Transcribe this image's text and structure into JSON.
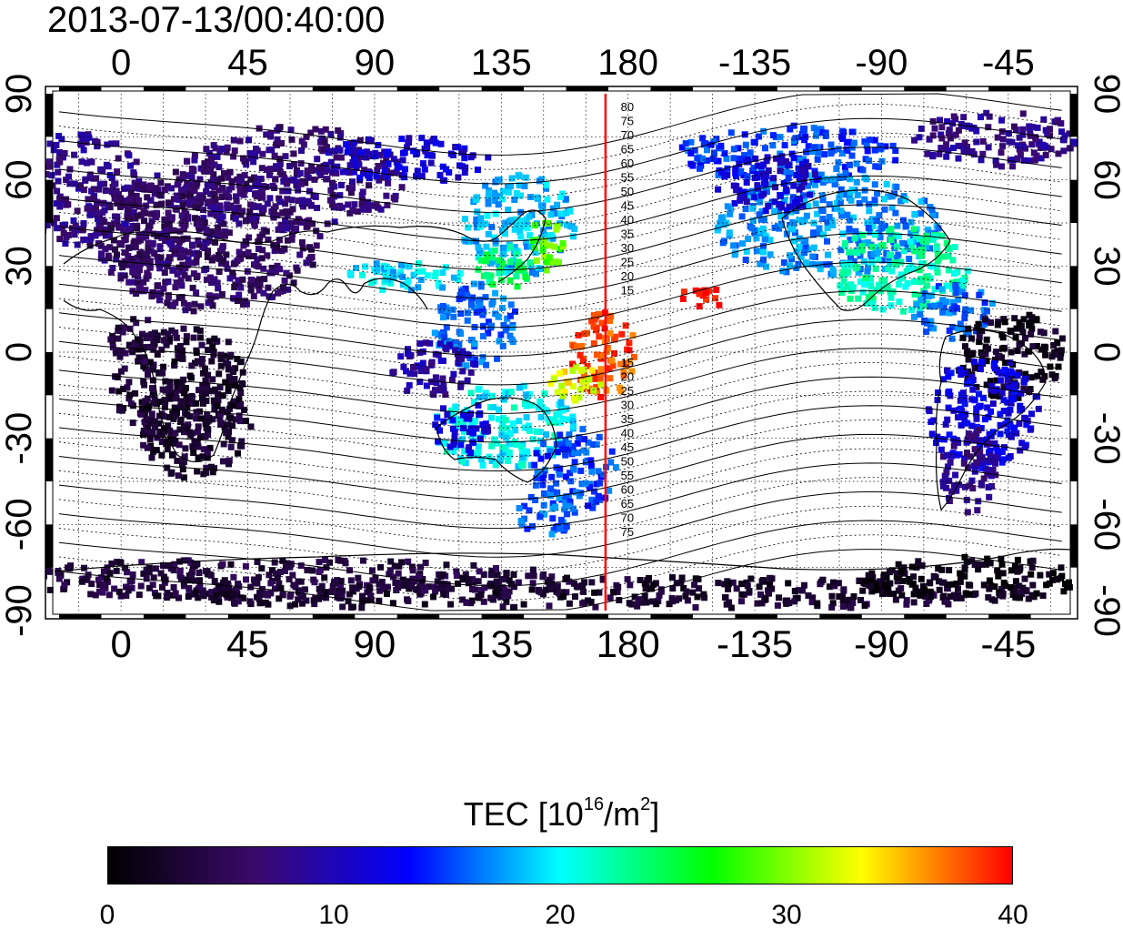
{
  "title": "2013-07-13/00:40:00",
  "map": {
    "projection": "equirectangular",
    "lon_range_deg": [
      -22,
      337
    ],
    "lat_range_deg": [
      -90,
      90
    ],
    "x_tick_labels": [
      "0",
      "45",
      "90",
      "135",
      "180",
      "-135",
      "-90",
      "-45"
    ],
    "x_tick_lon": [
      0,
      45,
      90,
      135,
      180,
      225,
      270,
      315
    ],
    "y_tick_labels": [
      "90",
      "60",
      "30",
      "0",
      "-30",
      "-60",
      "-90"
    ],
    "y_tick_lat": [
      90,
      60,
      30,
      0,
      -30,
      -60,
      -90
    ],
    "grid": "dotted",
    "meridian_marker_lon": 172,
    "meridian_marker_color": "#ff0000",
    "contour_labels_north": [
      "80",
      "75",
      "70",
      "65",
      "60",
      "55",
      "50",
      "45",
      "40",
      "35",
      "30",
      "25",
      "20",
      "15"
    ],
    "contour_labels_south": [
      "15",
      "20",
      "25",
      "30",
      "35",
      "40",
      "45",
      "50",
      "55",
      "60",
      "65",
      "70",
      "75"
    ]
  },
  "colorbar": {
    "title_main": "TEC  [10",
    "title_sup": "16",
    "title_mid": "/m",
    "title_sup2": "2",
    "title_end": "]",
    "min": 0,
    "max": 40,
    "tick_labels": [
      "0",
      "10",
      "20",
      "30",
      "40"
    ],
    "tick_values": [
      0,
      10,
      20,
      30,
      40
    ],
    "colors": [
      "#000000",
      "#3c0a6e",
      "#0000ff",
      "#00ffff",
      "#00ff00",
      "#ffff00",
      "#ff0000"
    ]
  }
}
